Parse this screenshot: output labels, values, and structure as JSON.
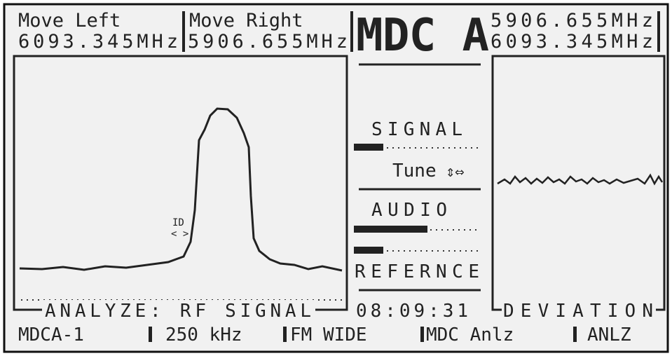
{
  "header": {
    "move_left": {
      "label": "Move Left",
      "freq": "6093.345MHz"
    },
    "move_right": {
      "label": "Move Right",
      "freq": "5906.655MHz"
    },
    "title": "MDC A",
    "freqs": [
      "5906.655MHz",
      "6093.345MHz"
    ]
  },
  "middle": {
    "signal": "SIGNAL",
    "tune": "Tune",
    "audio": "AUDIO",
    "reference": "REFERNCE",
    "time": "08:09:31"
  },
  "panels": {
    "analyze": "ANALYZE: RF SIGNAL",
    "deviation": "DEVIATION",
    "marker": "ID"
  },
  "status": [
    "MDCA-1",
    "250 kHz",
    "FM WIDE",
    "MDC Anlz",
    "ANLZ"
  ]
}
